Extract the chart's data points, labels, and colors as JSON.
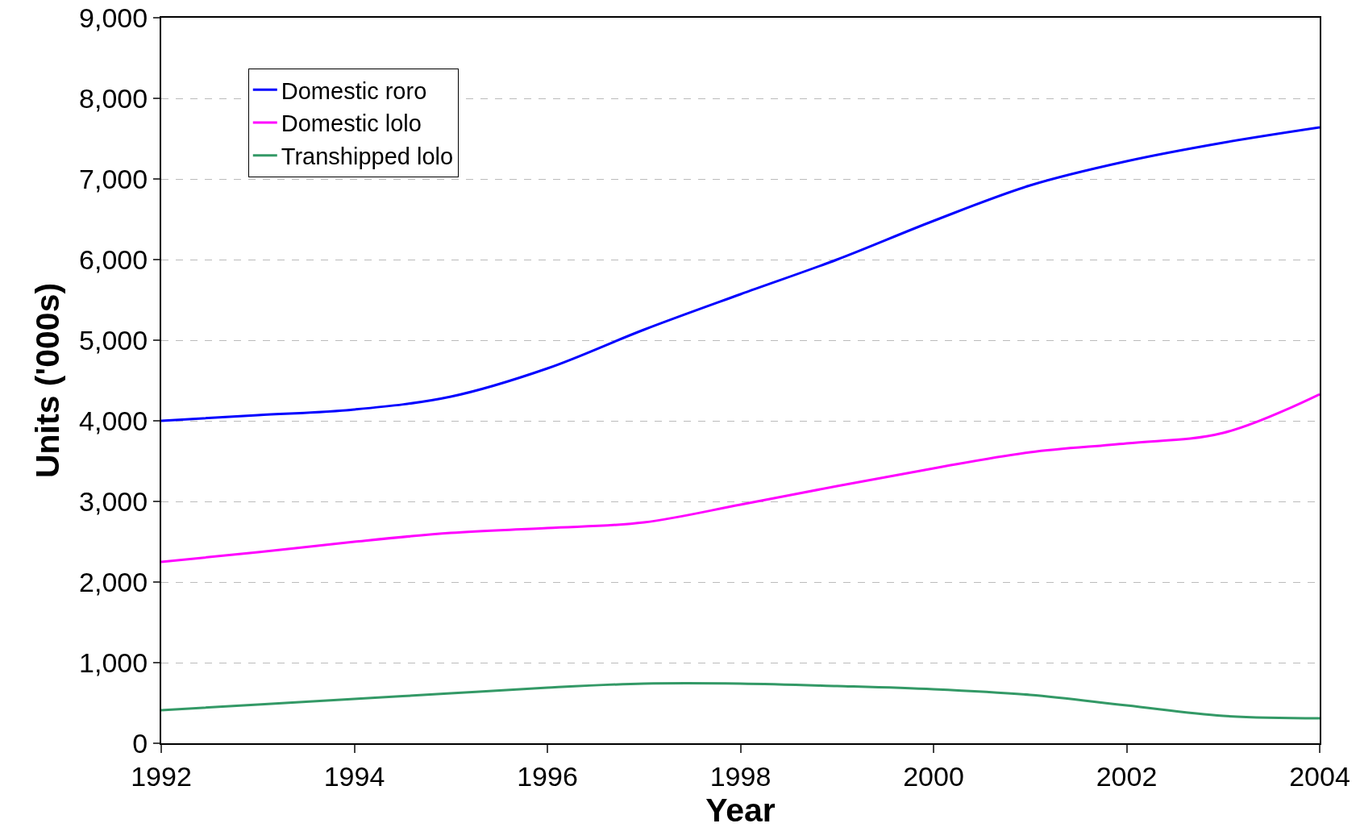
{
  "chart_data": {
    "type": "line",
    "xlabel": "Year",
    "ylabel": "Units ('000s)",
    "x": [
      1992,
      1993,
      1994,
      1995,
      1996,
      1997,
      1998,
      1999,
      2000,
      2001,
      2002,
      2003,
      2004
    ],
    "series": [
      {
        "name": "Domestic roro",
        "color": "#0000ff",
        "values": [
          4000,
          4070,
          4140,
          4300,
          4650,
          5130,
          5570,
          6000,
          6480,
          6920,
          7220,
          7450,
          7640
        ]
      },
      {
        "name": "Domestic lolo",
        "color": "#ff00ff",
        "values": [
          2250,
          2370,
          2500,
          2610,
          2670,
          2740,
          2960,
          3190,
          3410,
          3610,
          3720,
          3850,
          4330
        ]
      },
      {
        "name": "Transhipped lolo",
        "color": "#339966",
        "values": [
          410,
          480,
          550,
          620,
          690,
          740,
          740,
          710,
          670,
          600,
          470,
          340,
          310
        ]
      }
    ],
    "xlim": [
      1992,
      2004
    ],
    "xticks": [
      1992,
      1994,
      1996,
      1998,
      2000,
      2002,
      2004
    ],
    "ylim": [
      0,
      9000
    ],
    "yticks": [
      {
        "value": 0,
        "label": "0"
      },
      {
        "value": 1000,
        "label": "1,000"
      },
      {
        "value": 2000,
        "label": "2,000"
      },
      {
        "value": 3000,
        "label": "3,000"
      },
      {
        "value": 4000,
        "label": "4,000"
      },
      {
        "value": 5000,
        "label": "5,000"
      },
      {
        "value": 6000,
        "label": "6,000"
      },
      {
        "value": 7000,
        "label": "7,000"
      },
      {
        "value": 8000,
        "label": "8,000"
      },
      {
        "value": 9000,
        "label": "9,000"
      }
    ],
    "grid": "y",
    "legend": "top left",
    "marker": "none",
    "line_style": "solid"
  }
}
